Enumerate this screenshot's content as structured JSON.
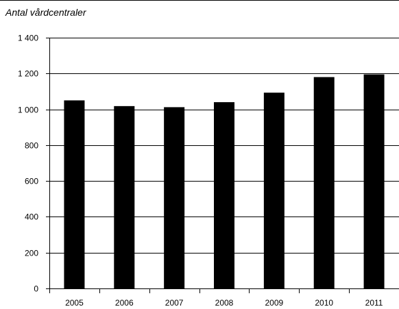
{
  "chart_data": {
    "type": "bar",
    "title": "Antal vårdcentraler",
    "categories": [
      "2005",
      "2006",
      "2007",
      "2008",
      "2009",
      "2010",
      "2011"
    ],
    "values": [
      1050,
      1018,
      1012,
      1040,
      1093,
      1180,
      1195
    ],
    "ylim": [
      0,
      1400
    ],
    "yticks": [
      0,
      200,
      400,
      600,
      800,
      1000,
      1200,
      1400
    ],
    "ytick_labels": [
      "0",
      "200",
      "400",
      "600",
      "800",
      "1 000",
      "1 200",
      "1 400"
    ],
    "grid": true,
    "bar_color": "#000000",
    "grid_color": "#000000"
  }
}
